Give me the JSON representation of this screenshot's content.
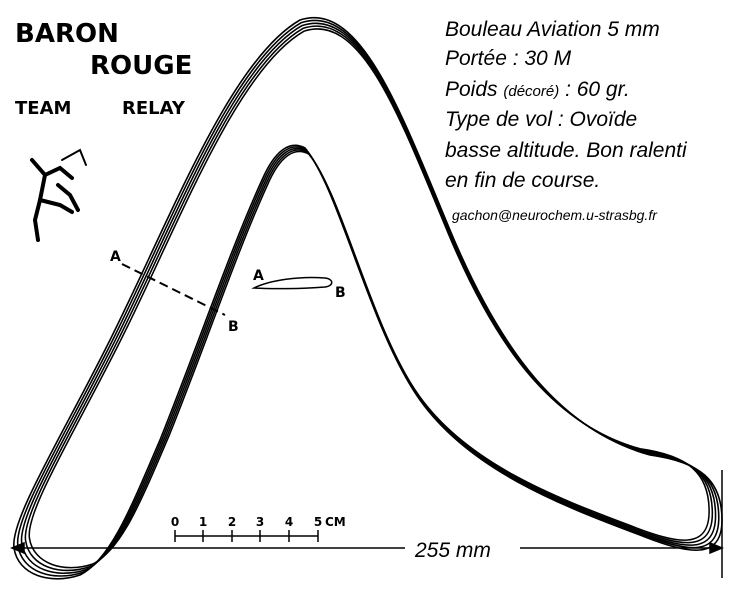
{
  "header": {
    "line1": "BARON",
    "line2": "ROUGE",
    "team": "TEAM",
    "relay": "RELAY"
  },
  "specs": {
    "line1": "Bouleau Aviation 5 mm",
    "line2": "Portée : 30 M",
    "line3_a": "Poids ",
    "line3_b": "(décoré)",
    "line3_c": " : 60 gr.",
    "line4": "Type de vol : Ovoïde",
    "line5": "basse altitude. Bon ralenti",
    "line6": "en fin de course.",
    "email": "gachon@neurochem.u-strasbg.fr"
  },
  "section": {
    "start": "A",
    "end": "B"
  },
  "profile": {
    "start": "A",
    "end": "B"
  },
  "scale": {
    "ticks": [
      "0",
      "1",
      "2",
      "3",
      "4",
      "5"
    ],
    "unit": "CM"
  },
  "dimension": "255 mm"
}
